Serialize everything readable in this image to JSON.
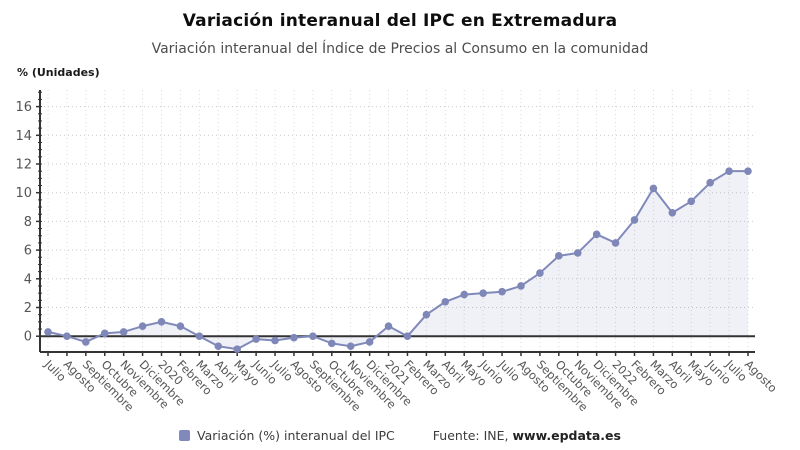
{
  "header": {
    "title": "Variación interanual del IPC en Extremadura",
    "subtitle": "Variación interanual del Índice de Precios al Consumo en la comunidad",
    "axis_unit_label": "% (Unidades)"
  },
  "legend": {
    "series_label": "Variación (%) interanual del IPC",
    "source_prefix": "Fuente: INE, ",
    "source_site": "www.epdata.es"
  },
  "colors": {
    "line": "#8089ba",
    "marker": "#7e87b8",
    "area_fill": "#8a94c4",
    "area_opacity": "0.13",
    "axis": "#333333",
    "grid_h": "#c9c9c9",
    "grid_v": "#d9d9d9",
    "tick_label": "#555555"
  },
  "chart_data": {
    "type": "line",
    "title": "Variación interanual del IPC en Extremadura",
    "subtitle": "Variación interanual del Índice de Precios al Consumo en la comunidad",
    "ylabel": "% (Unidades)",
    "xlabel": "",
    "grid": true,
    "legend_position": "bottom",
    "baseline": 0,
    "ylim": [
      -1.15,
      17.2
    ],
    "yticks": [
      0,
      2,
      4,
      6,
      8,
      10,
      12,
      14,
      16
    ],
    "categories": [
      "Julio",
      "Agosto",
      "Septiembre",
      "Octubre",
      "Noviembre",
      "Diciembre",
      "2020",
      "Febrero",
      "Marzo",
      "Abril",
      "Mayo",
      "Junio",
      "Julio",
      "Agosto",
      "Septiembre",
      "Octubre",
      "Noviembre",
      "Diciembre",
      "2021",
      "Febrero",
      "Marzo",
      "Abril",
      "Mayo",
      "Junio",
      "Julio",
      "Agosto",
      "Septiembre",
      "Octubre",
      "Noviembre",
      "Diciembre",
      "2022",
      "Febrero",
      "Marzo",
      "Abril",
      "Mayo",
      "Junio",
      "Julio",
      "Agosto"
    ],
    "series": [
      {
        "name": "Variación (%) interanual del IPC",
        "values": [
          0.3,
          0.0,
          -0.4,
          0.2,
          0.3,
          0.7,
          1.0,
          0.7,
          0.0,
          -0.7,
          -0.9,
          -0.2,
          -0.3,
          -0.1,
          0.0,
          -0.5,
          -0.7,
          -0.4,
          0.7,
          0.0,
          1.5,
          2.4,
          2.9,
          3.0,
          3.1,
          3.5,
          4.4,
          5.6,
          5.8,
          7.1,
          6.5,
          8.1,
          10.3,
          8.6,
          9.4,
          10.7,
          11.5,
          11.5
        ]
      }
    ]
  }
}
